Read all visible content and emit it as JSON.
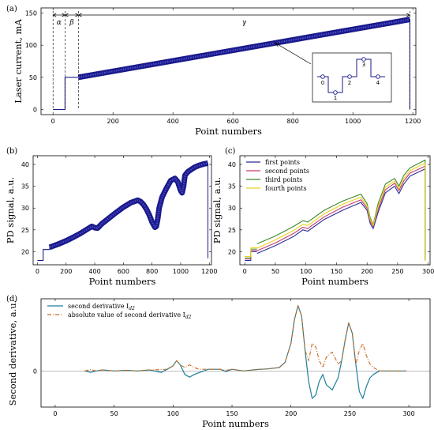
{
  "chart_data": [
    {
      "panel": "(a)",
      "type": "line",
      "xlabel": "Point numbers",
      "ylabel": "Laser current, mA",
      "xlim": [
        -40,
        1210
      ],
      "ylim": [
        -8,
        158
      ],
      "xticks": [
        "0",
        "200",
        "400",
        "600",
        "800",
        "1000",
        "1200"
      ],
      "yticks": [
        "0",
        "50",
        "100",
        "150"
      ],
      "x": [
        0,
        40,
        40,
        85,
        85,
        1190,
        1190
      ],
      "y": [
        0,
        0,
        50,
        50,
        50,
        140,
        0
      ],
      "regions": [
        {
          "label": "α",
          "from": 0,
          "to": 40
        },
        {
          "label": "β",
          "from": 40,
          "to": 85
        },
        {
          "label": "γ",
          "from": 85,
          "to": 1190
        }
      ],
      "inset": {
        "step_labels": [
          "0",
          "1",
          "2",
          "3",
          "4"
        ]
      },
      "colors": {
        "line": "#1a1a8c"
      }
    },
    {
      "panel": "(b)",
      "type": "line",
      "xlabel": "Point numbers",
      "ylabel": "PD signal, a.u.",
      "xlim": [
        -30,
        1215
      ],
      "ylim": [
        17,
        42
      ],
      "xticks": [
        "0",
        "200",
        "400",
        "600",
        "800",
        "1000",
        "1200"
      ],
      "yticks": [
        "20",
        "25",
        "30",
        "35",
        "40"
      ],
      "x": [
        0,
        40,
        40,
        85,
        85,
        150,
        200,
        250,
        300,
        350,
        380,
        400,
        420,
        450,
        500,
        550,
        600,
        650,
        700,
        720,
        740,
        760,
        780,
        800,
        820,
        830,
        840,
        850,
        870,
        900,
        930,
        960,
        980,
        1000,
        1010,
        1020,
        1030,
        1050,
        1080,
        1100,
        1130,
        1160,
        1190,
        1190
      ],
      "y": [
        18,
        18,
        20.5,
        20.5,
        21,
        21.8,
        22.5,
        23.3,
        24.2,
        25.2,
        25.8,
        25.5,
        25.4,
        26.4,
        27.7,
        29,
        30.2,
        31.2,
        31.8,
        31.5,
        30.8,
        29.8,
        28.5,
        26.8,
        25.6,
        25.8,
        27.5,
        30,
        32.5,
        34.5,
        36.3,
        36.8,
        36,
        34,
        33.5,
        35,
        37.5,
        38.3,
        39,
        39.4,
        39.8,
        40.1,
        40.3,
        18.5
      ],
      "colors": {
        "line": "#1a1a8c"
      }
    },
    {
      "panel": "(c)",
      "type": "line",
      "xlabel": "Point numbers",
      "ylabel": "PD signal, a.u.",
      "xlim": [
        -8,
        303
      ],
      "ylim": [
        17,
        42
      ],
      "xticks": [
        "0",
        "50",
        "100",
        "150",
        "200",
        "250",
        "300"
      ],
      "yticks": [
        "20",
        "25",
        "30",
        "35",
        "40"
      ],
      "legend_position": "top-left",
      "series": [
        {
          "name": "first points",
          "color": "#2b2b9a",
          "x": [
            20,
            50,
            80,
            95,
            103,
            130,
            160,
            190,
            200,
            205,
            210,
            218,
            230,
            245,
            252,
            260,
            270,
            295
          ],
          "y": [
            19.6,
            21.4,
            23.5,
            25,
            24.7,
            27.4,
            29.5,
            31.3,
            29.5,
            26.5,
            25.3,
            29,
            33.5,
            35,
            33.3,
            35.5,
            37.3,
            39
          ],
          "start": {
            "x": [
              0,
              10,
              10,
              20
            ],
            "y": [
              18,
              18,
              20,
              20
            ]
          }
        },
        {
          "name": "second points",
          "color": "#c43a6e",
          "x": [
            20,
            50,
            80,
            95,
            103,
            130,
            160,
            190,
            200,
            205,
            210,
            218,
            230,
            245,
            252,
            260,
            270,
            295
          ],
          "y": [
            20.2,
            22,
            24.2,
            25.6,
            25.3,
            28,
            30.2,
            31.9,
            30,
            27,
            25.8,
            29.7,
            34.2,
            35.7,
            34,
            36.2,
            38,
            39.6
          ],
          "start": {
            "x": [
              0,
              10,
              10,
              20
            ],
            "y": [
              18.3,
              18.3,
              20.3,
              20.3
            ]
          }
        },
        {
          "name": "third points",
          "color": "#3a8a2a",
          "x": [
            20,
            50,
            80,
            95,
            103,
            130,
            160,
            190,
            200,
            205,
            210,
            218,
            230,
            245,
            252,
            260,
            270,
            295
          ],
          "y": [
            21.8,
            23.6,
            25.8,
            27.1,
            26.8,
            29.5,
            31.6,
            33.2,
            31,
            27.8,
            26.2,
            31,
            35.5,
            36.8,
            35,
            37.5,
            39.2,
            41
          ],
          "start": {
            "x": [
              0,
              10,
              10,
              20
            ],
            "y": [
              18.6,
              18.6,
              20.6,
              20.6
            ]
          }
        },
        {
          "name": "fourth points",
          "color": "#e8d21a",
          "x": [
            20,
            50,
            80,
            95,
            103,
            130,
            160,
            190,
            200,
            205,
            210,
            218,
            230,
            245,
            252,
            260,
            270,
            295
          ],
          "y": [
            20.8,
            22.7,
            24.9,
            26.3,
            26,
            28.7,
            30.9,
            32.5,
            30.5,
            27.4,
            26,
            30.3,
            34.8,
            36.2,
            34.4,
            36.8,
            38.6,
            40.3
          ],
          "start": {
            "x": [
              0,
              10,
              10,
              20
            ],
            "y": [
              18.9,
              18.9,
              20.9,
              20.9
            ]
          }
        }
      ]
    },
    {
      "panel": "(d)",
      "type": "line",
      "xlabel": "Point numbers",
      "ylabel": "Second derivative, a.u.",
      "xlim": [
        -12,
        318
      ],
      "ylim": [
        -1.05,
        2.1
      ],
      "xticks": [
        "0",
        "50",
        "100",
        "150",
        "200",
        "250",
        "300"
      ],
      "yticks": [
        "0"
      ],
      "legend_position": "top-left",
      "series": [
        {
          "name": "second derivative I",
          "subscript": "d2",
          "color": "#1f7f9a",
          "style": "solid",
          "x": [
            25,
            30,
            35,
            40,
            50,
            60,
            70,
            80,
            90,
            95,
            100,
            103,
            106,
            110,
            114,
            118,
            122,
            130,
            140,
            145,
            150,
            160,
            170,
            180,
            190,
            195,
            200,
            203,
            206,
            209,
            212,
            215,
            218,
            221,
            224,
            227,
            230,
            235,
            240,
            243,
            246,
            249,
            252,
            255,
            258,
            261,
            264,
            267,
            270,
            275,
            280,
            290,
            298
          ],
          "y": [
            0,
            -0.04,
            0,
            0.03,
            0,
            0.02,
            0,
            0.03,
            -0.04,
            0.05,
            0.15,
            0.3,
            0.18,
            -0.1,
            -0.18,
            -0.1,
            -0.05,
            0.05,
            0.05,
            -0.02,
            0.05,
            0,
            0.04,
            0.06,
            0.1,
            0.25,
            0.8,
            1.5,
            1.9,
            1.6,
            0.6,
            -0.3,
            -0.8,
            -0.7,
            -0.3,
            -0.1,
            -0.4,
            -0.55,
            -0.2,
            0.3,
            0.9,
            1.4,
            1.1,
            0.2,
            -0.6,
            -0.8,
            -0.45,
            -0.2,
            -0.1,
            0,
            0,
            0,
            0
          ]
        },
        {
          "name": "absolute value of second derivative I",
          "subscript": "d2",
          "color": "#c86a1e",
          "style": "dashdot",
          "x": [
            25,
            30,
            35,
            40,
            50,
            60,
            70,
            80,
            90,
            95,
            100,
            103,
            106,
            110,
            114,
            118,
            122,
            130,
            140,
            145,
            150,
            160,
            170,
            180,
            190,
            195,
            200,
            203,
            206,
            209,
            212,
            215,
            218,
            221,
            224,
            227,
            230,
            235,
            240,
            243,
            246,
            249,
            252,
            255,
            258,
            261,
            264,
            267,
            270,
            275,
            280,
            290,
            298
          ],
          "y": [
            0,
            0.04,
            0,
            0.03,
            0,
            0.02,
            0,
            0.03,
            0.04,
            0.05,
            0.15,
            0.3,
            0.18,
            0.1,
            0.18,
            0.1,
            0.05,
            0.05,
            0.05,
            0.02,
            0.05,
            0,
            0.04,
            0.06,
            0.1,
            0.25,
            0.8,
            1.5,
            1.9,
            1.6,
            0.6,
            0.3,
            0.8,
            0.7,
            0.3,
            0.1,
            0.4,
            0.55,
            0.2,
            0.3,
            0.9,
            1.4,
            1.1,
            0.2,
            0.6,
            0.8,
            0.45,
            0.2,
            0.1,
            0,
            0,
            0,
            0
          ]
        }
      ]
    }
  ]
}
